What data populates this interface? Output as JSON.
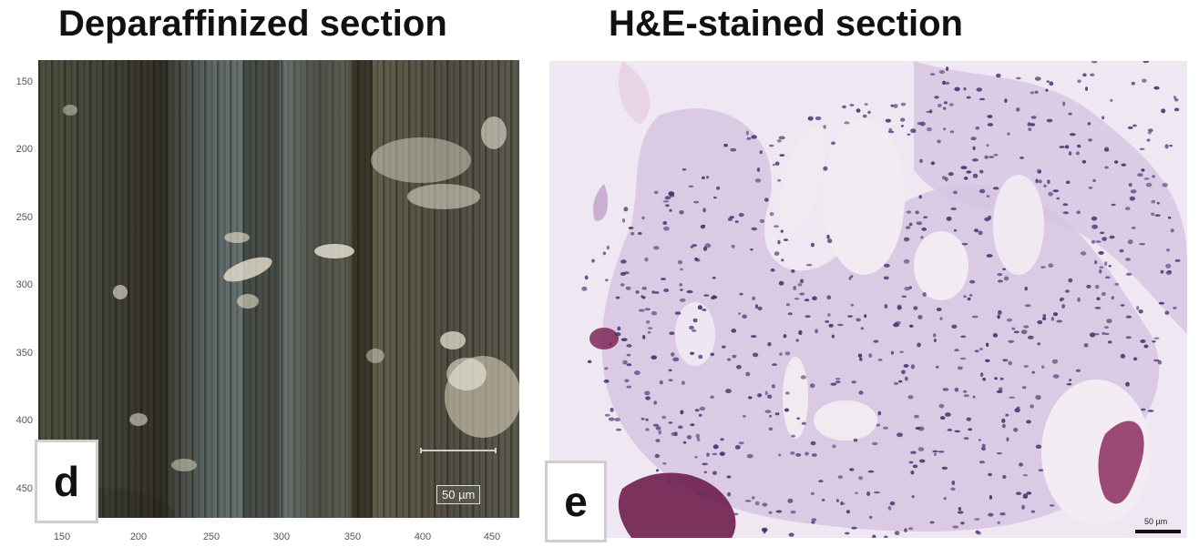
{
  "titles": {
    "left": "Deparaffinized section",
    "right": "H&E-stained section"
  },
  "panels": {
    "d": {
      "letter": "d",
      "scale_label": "50 µm"
    },
    "e": {
      "letter": "e",
      "scale_label": "50 µm"
    }
  },
  "axes": {
    "y_ticks": [
      "150",
      "200",
      "250",
      "300",
      "350",
      "400",
      "450"
    ],
    "x_ticks": [
      "150",
      "200",
      "250",
      "300",
      "350",
      "400",
      "450"
    ]
  },
  "colors": {
    "deparaffinized_base": "#4a4a3a",
    "he_background": "#efe7f2",
    "nuclei": "#3c2f6e",
    "eosin_fragments": "#8a2d5e"
  }
}
